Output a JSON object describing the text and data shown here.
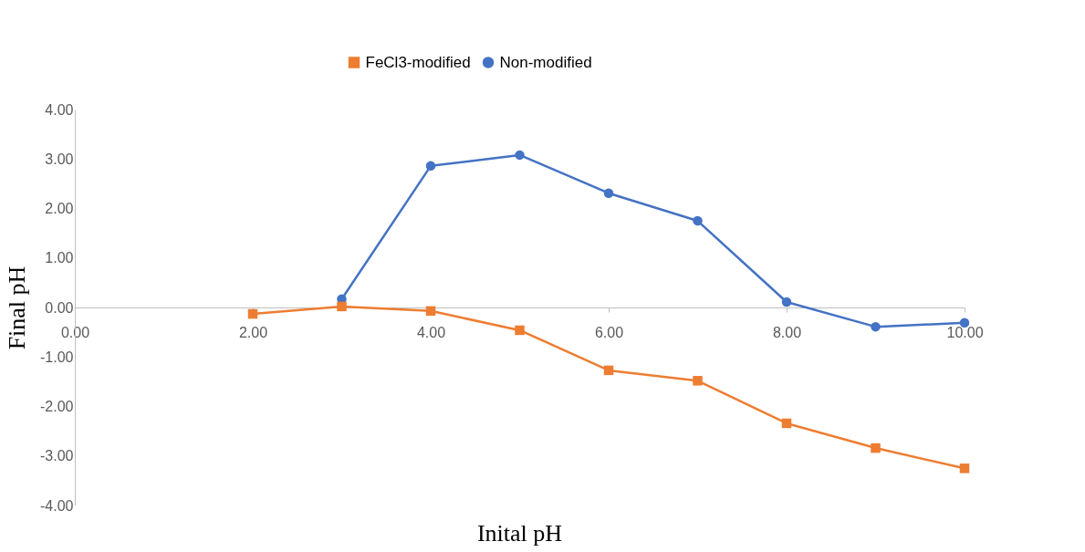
{
  "chart_data": {
    "type": "line",
    "xlabel": "Inital pH",
    "ylabel": "Final pH",
    "xlim": [
      0,
      10
    ],
    "xticks": [
      {
        "value": 0,
        "label": "0.00"
      },
      {
        "value": 2,
        "label": "2.00"
      },
      {
        "value": 4,
        "label": "4.00"
      },
      {
        "value": 6,
        "label": "6.00"
      },
      {
        "value": 8,
        "label": "8.00"
      },
      {
        "value": 10,
        "label": "10.00"
      }
    ],
    "ylim": [
      -4,
      4
    ],
    "yticks": [
      {
        "value": -4,
        "label": "-4.00"
      },
      {
        "value": -3,
        "label": "-3.00"
      },
      {
        "value": -2,
        "label": "-2.00"
      },
      {
        "value": -1,
        "label": "-1.00"
      },
      {
        "value": 0,
        "label": "0.00"
      },
      {
        "value": 1,
        "label": "1.00"
      },
      {
        "value": 2,
        "label": "2.00"
      },
      {
        "value": 3,
        "label": "3.00"
      },
      {
        "value": 4,
        "label": "4.00"
      }
    ],
    "grid": false,
    "legend": "top",
    "series": [
      {
        "name": "FeCl3-modified",
        "color": "#ed7d31",
        "marker": "square",
        "x": [
          2,
          3,
          4,
          5,
          6,
          7,
          8,
          9,
          10
        ],
        "values": [
          -0.13,
          0.02,
          -0.07,
          -0.46,
          -1.27,
          -1.48,
          -2.34,
          -2.84,
          -3.25
        ]
      },
      {
        "name": "Non-modified",
        "color": "#4472c4",
        "marker": "circle",
        "x": [
          3,
          4,
          5,
          6,
          7,
          8,
          9,
          10
        ],
        "values": [
          0.17,
          2.86,
          3.08,
          2.31,
          1.75,
          0.11,
          -0.39,
          -0.31
        ]
      }
    ]
  }
}
